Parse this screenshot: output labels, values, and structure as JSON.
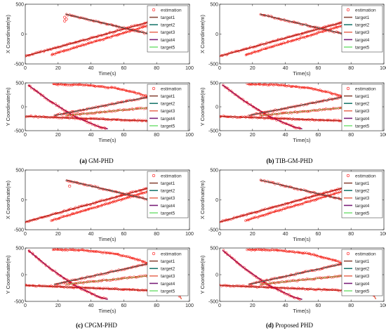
{
  "captions": [
    {
      "tag": "(a)",
      "text": "GM-PHD"
    },
    {
      "tag": "(b)",
      "text": "TIB-GM-PHD"
    },
    {
      "tag": "(c)",
      "text": "CPGM-PHD"
    },
    {
      "tag": "(d)",
      "text": "Proposed PHD"
    }
  ],
  "colors": {
    "target1": "#8b4a3c",
    "target2": "#1f7a70",
    "target3": "#e8735f",
    "target4": "#7a1f7a",
    "target5": "#7fe37f",
    "estimation": "#ff0000"
  },
  "chart_data": [
    {
      "panel": "(a) GM-PHD",
      "type": "line",
      "xlabel": "Time(s)",
      "ylabel": "X Coordinate(m)",
      "xlim": [
        0,
        100
      ],
      "ylim": [
        -500,
        500
      ],
      "xticks": [
        0,
        20,
        40,
        60,
        80,
        100
      ],
      "yticks": [
        -500,
        0,
        500
      ],
      "legend": [
        "estimation",
        "target1",
        "target2",
        "target3",
        "target4",
        "target5"
      ],
      "series": [
        {
          "name": "target1",
          "x": [
            0,
            95
          ],
          "y": [
            -370,
            350
          ]
        },
        {
          "name": "target3",
          "x": [
            16,
            95
          ],
          "y": [
            -345,
            310
          ]
        },
        {
          "name": "target2",
          "x": [
            25,
            75
          ],
          "y": [
            330,
            5
          ]
        },
        {
          "name": "estimation",
          "x": [
            24,
            24,
            25
          ],
          "y": [
            280,
            220,
            250
          ]
        }
      ]
    },
    {
      "panel": "(a) GM-PHD",
      "type": "line",
      "xlabel": "Time(s)",
      "ylabel": "Y Coordinate(m)",
      "xlim": [
        0,
        100
      ],
      "ylim": [
        -500,
        500
      ],
      "xticks": [
        0,
        20,
        40,
        60,
        80,
        100
      ],
      "yticks": [
        -500,
        0,
        500
      ],
      "legend": [
        "estimation",
        "target1",
        "target2",
        "target3",
        "target4",
        "target5"
      ],
      "series": [
        {
          "name": "target1",
          "x": [
            0,
            95
          ],
          "y": [
            -200,
            -320
          ]
        },
        {
          "name": "target3",
          "x": [
            17,
            35,
            55,
            70,
            85,
            95
          ],
          "y": [
            470,
            460,
            390,
            270,
            80,
            -450
          ]
        },
        {
          "name": "target4",
          "x": [
            2,
            15,
            30,
            45,
            50
          ],
          "y": [
            450,
            120,
            -200,
            -420,
            -460
          ]
        },
        {
          "name": "target2",
          "x": [
            18,
            95
          ],
          "y": [
            -180,
            340
          ]
        },
        {
          "name": "target5",
          "x": [
            25,
            75
          ],
          "y": [
            -180,
            -20
          ]
        }
      ]
    },
    {
      "panel": "(b) TIB-GM-PHD",
      "type": "line",
      "xlabel": "Time(s)",
      "ylabel": "X Coordinate(m)",
      "xlim": [
        0,
        100
      ],
      "ylim": [
        -500,
        500
      ],
      "xticks": [
        0,
        20,
        40,
        60,
        80,
        100
      ],
      "yticks": [
        -500,
        0,
        500
      ],
      "legend": [
        "estimation",
        "target1",
        "target2",
        "target3",
        "target4",
        "target5"
      ],
      "series": [
        {
          "name": "target1",
          "x": [
            0,
            95
          ],
          "y": [
            -370,
            350
          ]
        },
        {
          "name": "target3",
          "x": [
            16,
            95
          ],
          "y": [
            -345,
            310
          ]
        },
        {
          "name": "target2",
          "x": [
            25,
            75
          ],
          "y": [
            330,
            5
          ]
        }
      ]
    },
    {
      "panel": "(b) TIB-GM-PHD",
      "type": "line",
      "xlabel": "Time(s)",
      "ylabel": "Y Coordinate(m)",
      "xlim": [
        0,
        100
      ],
      "ylim": [
        -500,
        500
      ],
      "xticks": [
        0,
        20,
        40,
        60,
        80,
        100
      ],
      "yticks": [
        -500,
        0,
        500
      ],
      "legend": [
        "estimation",
        "target1",
        "target2",
        "target3",
        "target4",
        "target5"
      ],
      "series": [
        {
          "name": "target1",
          "x": [
            0,
            95
          ],
          "y": [
            -200,
            -320
          ]
        },
        {
          "name": "target3",
          "x": [
            17,
            35,
            55,
            70,
            85,
            95
          ],
          "y": [
            470,
            460,
            390,
            270,
            80,
            -450
          ]
        },
        {
          "name": "target4",
          "x": [
            2,
            15,
            30,
            45,
            50
          ],
          "y": [
            450,
            120,
            -200,
            -420,
            -460
          ]
        },
        {
          "name": "target2",
          "x": [
            18,
            95
          ],
          "y": [
            -180,
            340
          ]
        },
        {
          "name": "target5",
          "x": [
            25,
            75
          ],
          "y": [
            -180,
            -20
          ]
        }
      ]
    },
    {
      "panel": "(c) CPGM-PHD",
      "type": "line",
      "xlabel": "Time(s)",
      "ylabel": "X Coordinate(m)",
      "xlim": [
        0,
        100
      ],
      "ylim": [
        -500,
        500
      ],
      "xticks": [
        0,
        20,
        40,
        60,
        80,
        100
      ],
      "yticks": [
        -500,
        0,
        500
      ],
      "legend": [
        "estimation",
        "target1",
        "target2",
        "target3",
        "target4",
        "target5"
      ],
      "series": [
        {
          "name": "target1",
          "x": [
            0,
            95
          ],
          "y": [
            -370,
            350
          ]
        },
        {
          "name": "target3",
          "x": [
            16,
            95
          ],
          "y": [
            -345,
            310
          ]
        },
        {
          "name": "target2",
          "x": [
            25,
            75
          ],
          "y": [
            330,
            5
          ]
        },
        {
          "name": "estimation",
          "x": [
            27
          ],
          "y": [
            230
          ]
        }
      ]
    },
    {
      "panel": "(c) CPGM-PHD",
      "type": "line",
      "xlabel": "Time(s)",
      "ylabel": "Y Coordinate(m)",
      "xlim": [
        0,
        100
      ],
      "ylim": [
        -500,
        500
      ],
      "xticks": [
        0,
        20,
        40,
        60,
        80,
        100
      ],
      "yticks": [
        -500,
        0,
        500
      ],
      "legend": [
        "estimation",
        "target1",
        "target2",
        "target3",
        "target4",
        "target5"
      ],
      "series": [
        {
          "name": "target1",
          "x": [
            0,
            95
          ],
          "y": [
            -200,
            -320
          ]
        },
        {
          "name": "target3",
          "x": [
            17,
            35,
            55,
            70,
            85,
            95
          ],
          "y": [
            470,
            460,
            390,
            270,
            80,
            -450
          ]
        },
        {
          "name": "target4",
          "x": [
            2,
            15,
            30,
            45,
            50
          ],
          "y": [
            450,
            120,
            -200,
            -420,
            -460
          ]
        },
        {
          "name": "target2",
          "x": [
            18,
            95
          ],
          "y": [
            -180,
            340
          ]
        },
        {
          "name": "target5",
          "x": [
            25,
            75
          ],
          "y": [
            -180,
            -20
          ]
        }
      ]
    },
    {
      "panel": "(d) Proposed PHD",
      "type": "line",
      "xlabel": "Time(s)",
      "ylabel": "X Coordinate(m)",
      "xlim": [
        0,
        100
      ],
      "ylim": [
        -500,
        500
      ],
      "xticks": [
        0,
        20,
        40,
        60,
        80,
        100
      ],
      "yticks": [
        -500,
        0,
        500
      ],
      "legend": [
        "estimation",
        "target1",
        "target2",
        "target3",
        "target4",
        "target5"
      ],
      "series": [
        {
          "name": "target1",
          "x": [
            0,
            95
          ],
          "y": [
            -370,
            350
          ]
        },
        {
          "name": "target3",
          "x": [
            16,
            95
          ],
          "y": [
            -345,
            310
          ]
        },
        {
          "name": "target2",
          "x": [
            25,
            75
          ],
          "y": [
            330,
            5
          ]
        }
      ]
    },
    {
      "panel": "(d) Proposed PHD",
      "type": "line",
      "xlabel": "Time(s)",
      "ylabel": "Y Coordinate(m)",
      "xlim": [
        0,
        100
      ],
      "ylim": [
        -500,
        500
      ],
      "xticks": [
        0,
        20,
        40,
        60,
        80,
        100
      ],
      "yticks": [
        -500,
        0,
        500
      ],
      "legend": [
        "estimation",
        "target1",
        "target2",
        "target3",
        "target4",
        "target5"
      ],
      "series": [
        {
          "name": "target1",
          "x": [
            0,
            95
          ],
          "y": [
            -200,
            -320
          ]
        },
        {
          "name": "target3",
          "x": [
            17,
            35,
            55,
            70,
            85,
            95
          ],
          "y": [
            470,
            460,
            390,
            270,
            80,
            -450
          ]
        },
        {
          "name": "target4",
          "x": [
            2,
            15,
            30,
            45,
            50
          ],
          "y": [
            450,
            120,
            -200,
            -420,
            -460
          ]
        },
        {
          "name": "target2",
          "x": [
            18,
            95
          ],
          "y": [
            -180,
            340
          ]
        },
        {
          "name": "target5",
          "x": [
            25,
            75
          ],
          "y": [
            -180,
            -20
          ]
        }
      ]
    }
  ]
}
